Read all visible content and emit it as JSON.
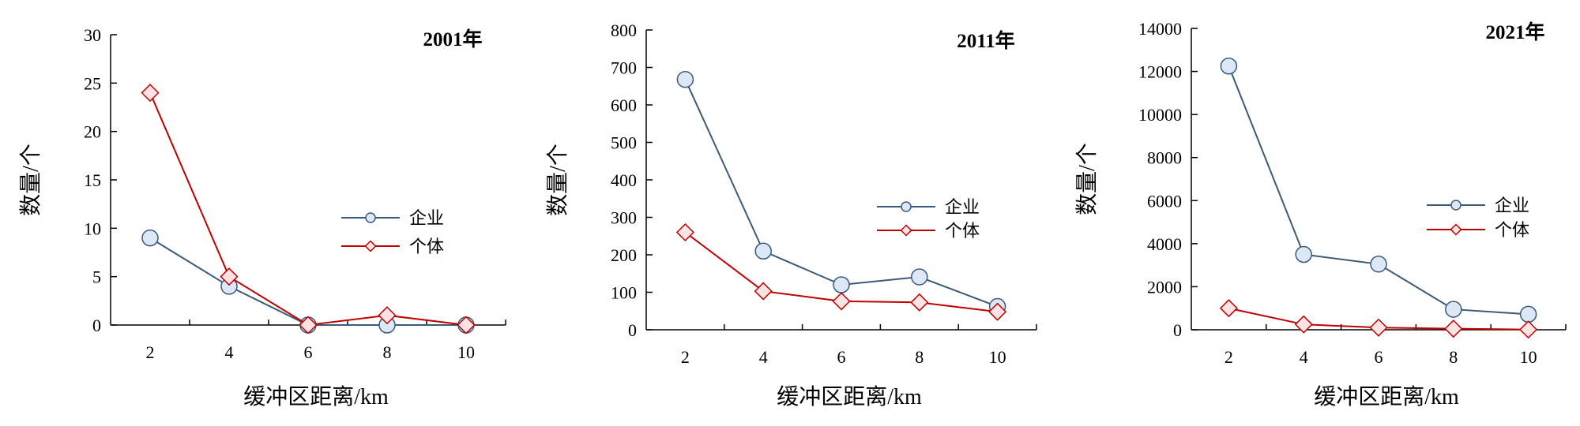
{
  "colors": {
    "enterprise_line": "#3a5a7a",
    "enterprise_fill": "#dde8f6",
    "individual_line": "#c00000",
    "individual_fill": "#fde3e3",
    "axis": "#000000"
  },
  "chart_data": [
    {
      "type": "line",
      "title": "2001年",
      "xlabel": "缓冲区距离/km",
      "ylabel": "数量/个",
      "x": [
        2,
        4,
        6,
        8,
        10
      ],
      "ylim": [
        0,
        30
      ],
      "yticks": [
        0,
        5,
        10,
        15,
        20,
        25,
        30
      ],
      "grid": false,
      "legend": "right",
      "series": [
        {
          "name": "企业",
          "marker": "circle",
          "values": [
            9,
            4,
            0,
            0,
            0
          ]
        },
        {
          "name": "个体",
          "marker": "diamond",
          "values": [
            24,
            5,
            0,
            1,
            0
          ]
        }
      ]
    },
    {
      "type": "line",
      "title": "2011年",
      "xlabel": "缓冲区距离/km",
      "ylabel": "数量/个",
      "x": [
        2,
        4,
        6,
        8,
        10
      ],
      "ylim": [
        0,
        800
      ],
      "yticks": [
        0,
        100,
        200,
        300,
        400,
        500,
        600,
        700,
        800
      ],
      "grid": false,
      "legend": "right",
      "series": [
        {
          "name": "企业",
          "marker": "circle",
          "values": [
            668,
            210,
            120,
            141,
            62
          ]
        },
        {
          "name": "个体",
          "marker": "diamond",
          "values": [
            260,
            103,
            76,
            73,
            48
          ]
        }
      ]
    },
    {
      "type": "line",
      "title": "2021年",
      "xlabel": "缓冲区距离/km",
      "ylabel": "数量/个",
      "x": [
        2,
        4,
        6,
        8,
        10
      ],
      "ylim": [
        0,
        14000
      ],
      "yticks": [
        0,
        2000,
        4000,
        6000,
        8000,
        10000,
        12000,
        14000
      ],
      "grid": false,
      "legend": "right",
      "series": [
        {
          "name": "企业",
          "marker": "circle",
          "values": [
            12250,
            3500,
            3050,
            950,
            720
          ]
        },
        {
          "name": "个体",
          "marker": "diamond",
          "values": [
            1000,
            250,
            100,
            50,
            10
          ]
        }
      ]
    }
  ]
}
